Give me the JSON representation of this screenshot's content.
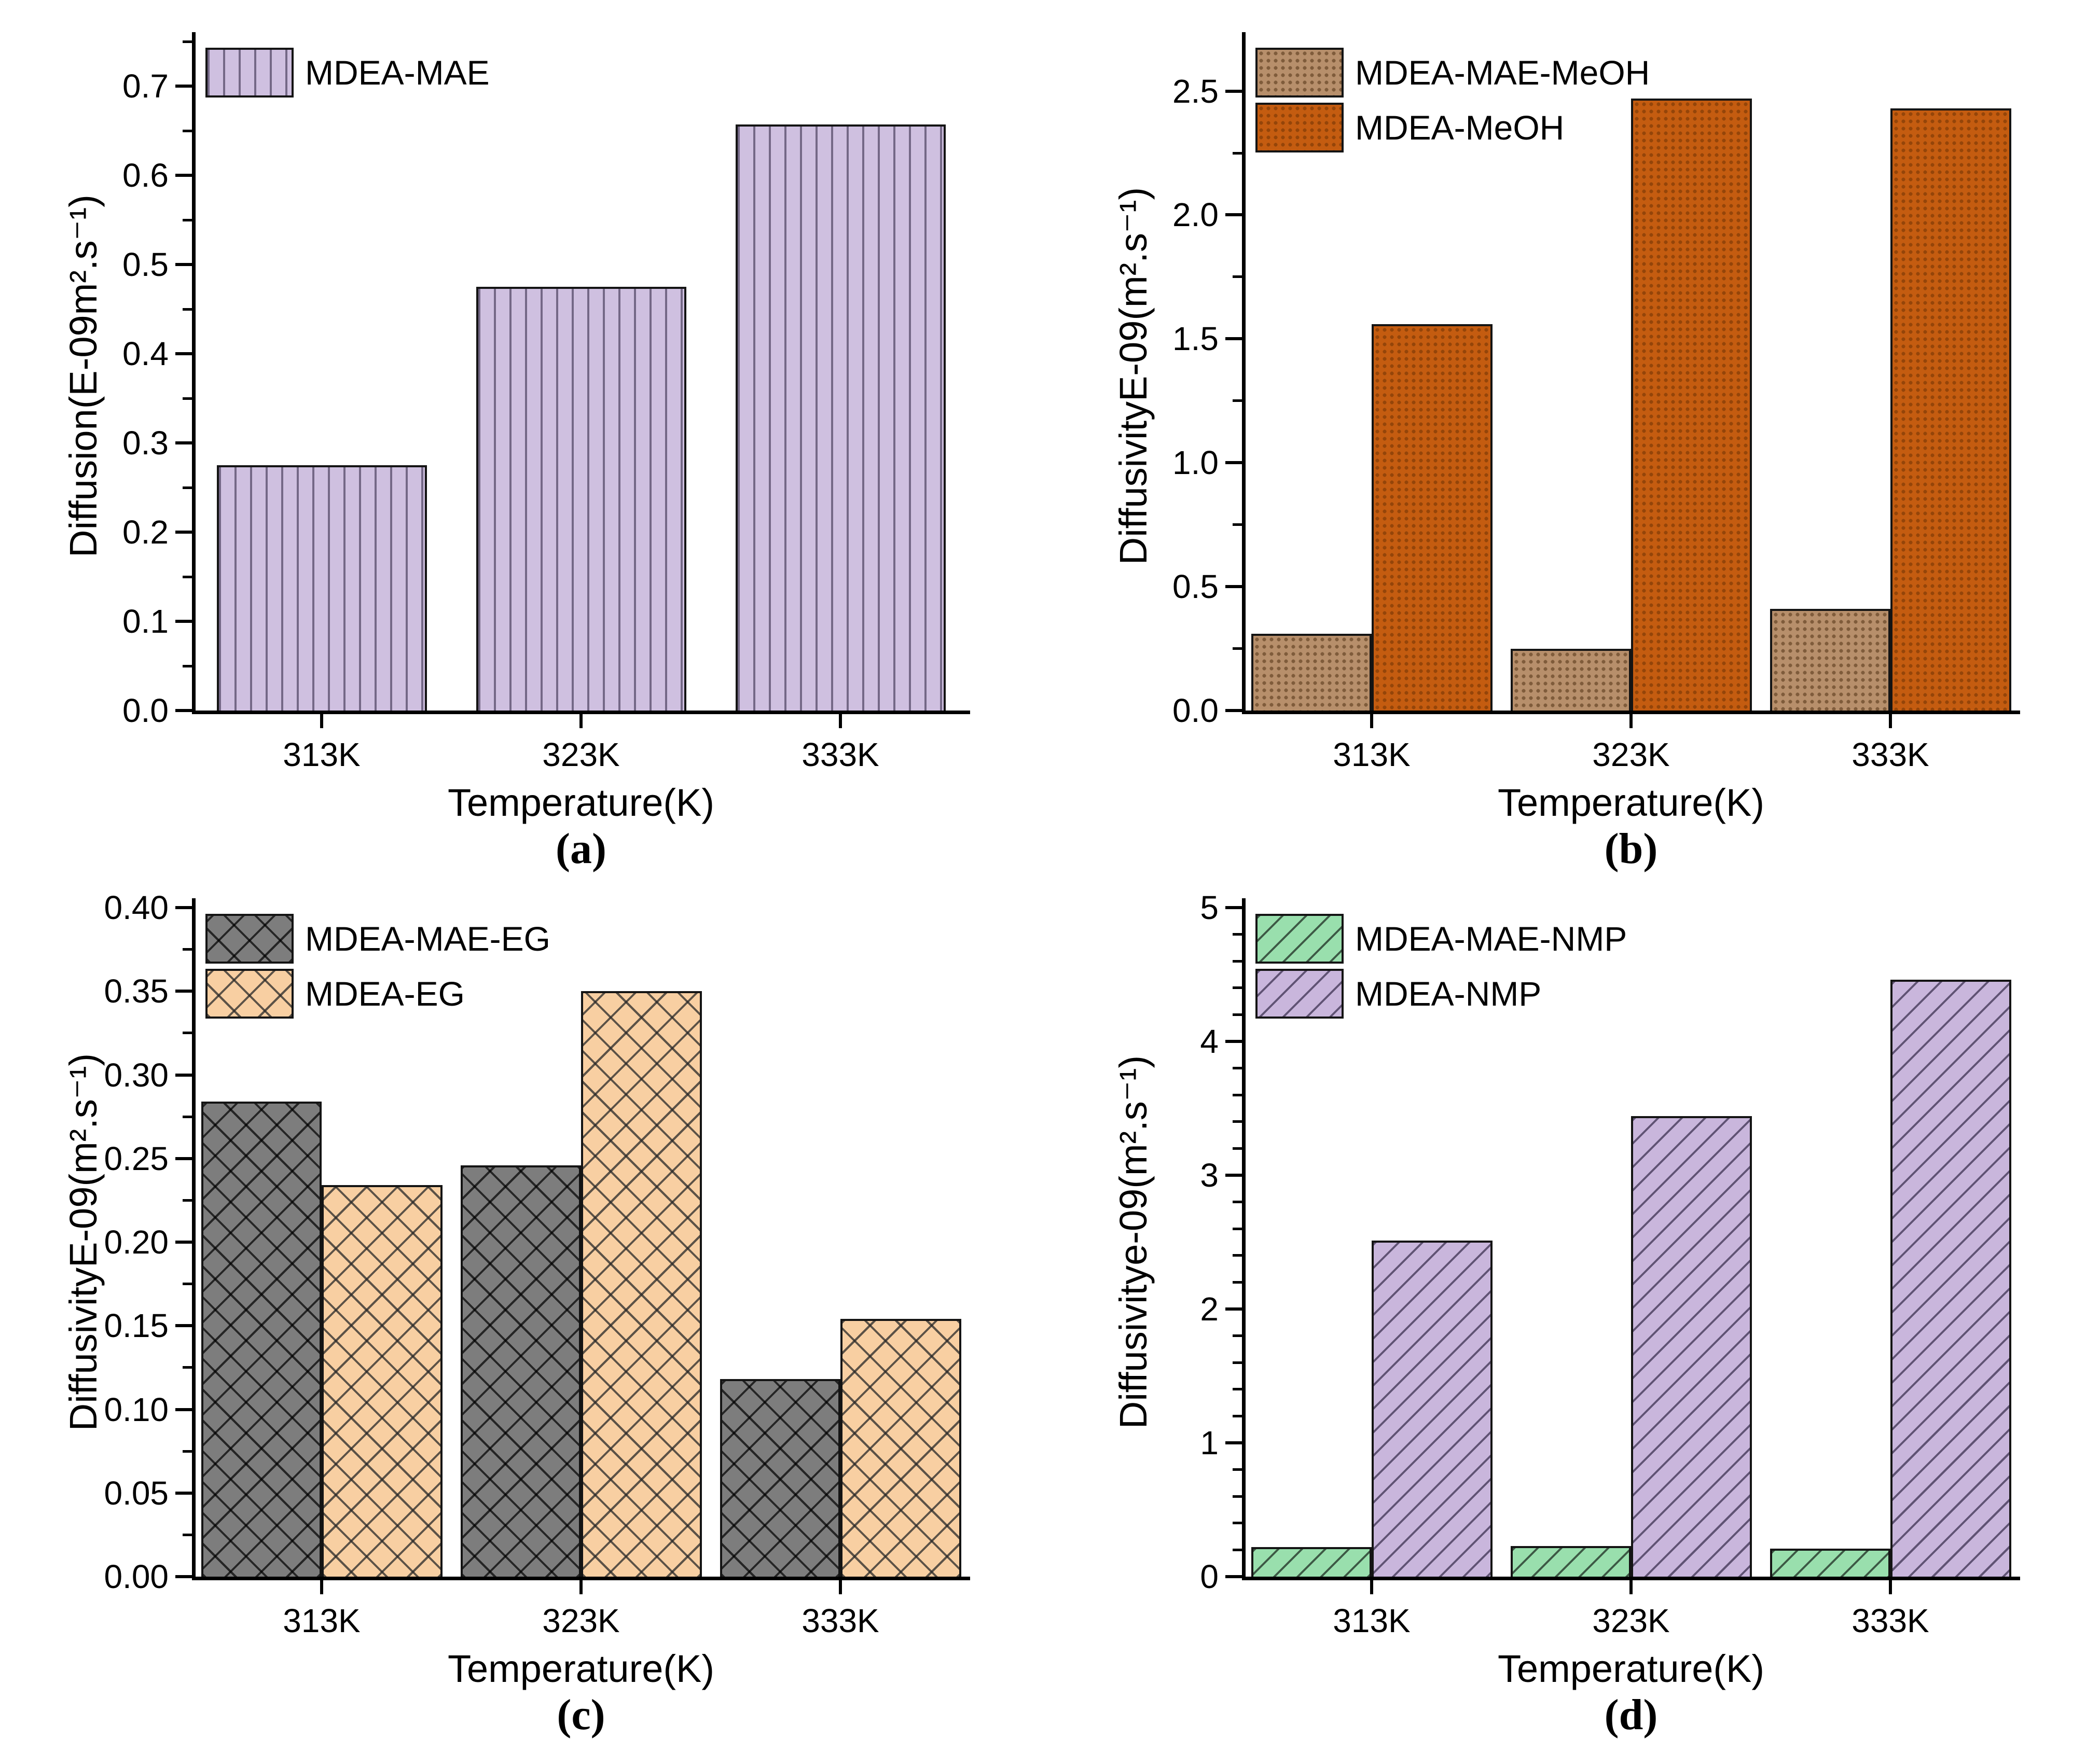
{
  "figure": {
    "background": "#ffffff",
    "layout": "2x2-subplot-grid"
  },
  "chart_data": [
    {
      "id": "a",
      "type": "bar",
      "caption": "(a)",
      "title": "",
      "xlabel": "Temperature(K)",
      "ylabel": "Diffusion(E-09m².s⁻¹)",
      "categories": [
        "313K",
        "323K",
        "333K"
      ],
      "series": [
        {
          "name": "MDEA-MAE",
          "values": [
            0.275,
            0.475,
            0.657
          ],
          "fill": "#cfc0e0",
          "hatch": "vertical-lines",
          "hatch_color": "rgba(55,45,75,0.60)"
        }
      ],
      "ylim": [
        0.0,
        0.75
      ],
      "axis": {
        "ymin": 0.0,
        "ymax": 0.75,
        "major_step": 0.1,
        "minors_per_major": 1,
        "tick_decimals": 1
      },
      "legend_position": "top-left",
      "grid": false
    },
    {
      "id": "b",
      "type": "bar",
      "caption": "(b)",
      "title": "",
      "xlabel": "Temperature(K)",
      "ylabel": "DiffusivityE-09(m².s⁻¹)",
      "categories": [
        "313K",
        "323K",
        "333K"
      ],
      "series": [
        {
          "name": "MDEA-MAE-MeOH",
          "values": [
            0.31,
            0.25,
            0.41
          ],
          "fill": "#b78f6b",
          "hatch": "dots",
          "hatch_color": "rgba(80,50,20,0.55)"
        },
        {
          "name": "MDEA-MeOH",
          "values": [
            1.56,
            2.47,
            2.43
          ],
          "fill": "#c45c10",
          "hatch": "dots",
          "hatch_color": "rgba(90,40,0,0.45)"
        }
      ],
      "ylim": [
        0.0,
        2.7
      ],
      "axis": {
        "ymin": 0.0,
        "ymax": 2.7,
        "major_step": 0.5,
        "minors_per_major": 1,
        "tick_decimals": 1
      },
      "legend_position": "top-left",
      "grid": false
    },
    {
      "id": "c",
      "type": "bar",
      "caption": "(c)",
      "title": "",
      "xlabel": "Temperature(K)",
      "ylabel": "DiffusivityE-09(m².s⁻¹)",
      "categories": [
        "313K",
        "323K",
        "333K"
      ],
      "series": [
        {
          "name": "MDEA-MAE-EG",
          "values": [
            0.284,
            0.246,
            0.118
          ],
          "fill": "#7d7d7d",
          "hatch": "crosshatch",
          "hatch_color": "rgba(0,0,0,0.70)"
        },
        {
          "name": "MDEA-EG",
          "values": [
            0.234,
            0.35,
            0.154
          ],
          "fill": "#f8cfa2",
          "hatch": "crosshatch",
          "hatch_color": "rgba(40,40,40,0.75)"
        }
      ],
      "ylim": [
        0.0,
        0.4
      ],
      "axis": {
        "ymin": 0.0,
        "ymax": 0.4,
        "major_step": 0.05,
        "minors_per_major": 1,
        "tick_decimals": 2
      },
      "legend_position": "top-left",
      "grid": false
    },
    {
      "id": "d",
      "type": "bar",
      "caption": "(d)",
      "title": "",
      "xlabel": "Temperature(K)",
      "ylabel": "Diffusivitye-09(m².s⁻¹)",
      "categories": [
        "313K",
        "323K",
        "333K"
      ],
      "series": [
        {
          "name": "MDEA-MAE-NMP",
          "values": [
            0.22,
            0.23,
            0.21
          ],
          "fill": "#99dfad",
          "hatch": "diagonal-lines",
          "hatch_color": "rgba(0,0,0,0.60)"
        },
        {
          "name": "MDEA-NMP",
          "values": [
            2.51,
            3.44,
            4.46
          ],
          "fill": "#c9b6dc",
          "hatch": "diagonal-lines",
          "hatch_color": "rgba(40,30,60,0.65)"
        }
      ],
      "ylim": [
        0,
        5
      ],
      "axis": {
        "ymin": 0,
        "ymax": 5,
        "major_step": 1,
        "minors_per_major": 4,
        "tick_decimals": 0
      },
      "legend_position": "top-left",
      "grid": false
    }
  ]
}
